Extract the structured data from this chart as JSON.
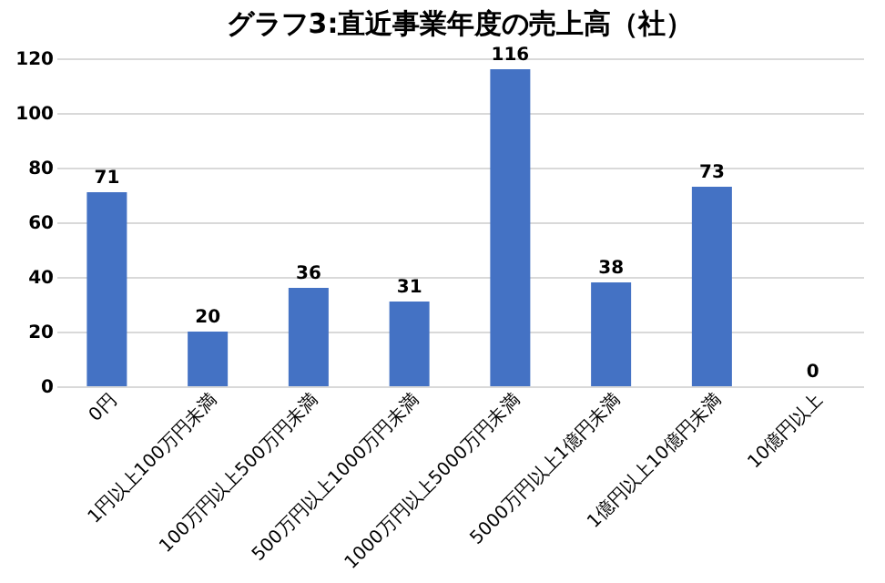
{
  "chart_data": {
    "type": "bar",
    "title": "グラフ3:直近事業年度の売上高（社）",
    "categories": [
      "0円",
      "1円以上100万円未満",
      "100万円以上500万円未満",
      "500万円以上1000万円未満",
      "1000万円以上5000万円未満",
      "5000万円以上1億円未満",
      "1億円以上10億円未満",
      "10億円以上"
    ],
    "values": [
      71,
      20,
      36,
      31,
      116,
      38,
      73,
      0
    ],
    "color": "#4472c4",
    "ylim": [
      0,
      120
    ],
    "yticks": [
      0,
      20,
      40,
      60,
      80,
      100,
      120
    ],
    "grid": "y",
    "data_labels": true
  }
}
